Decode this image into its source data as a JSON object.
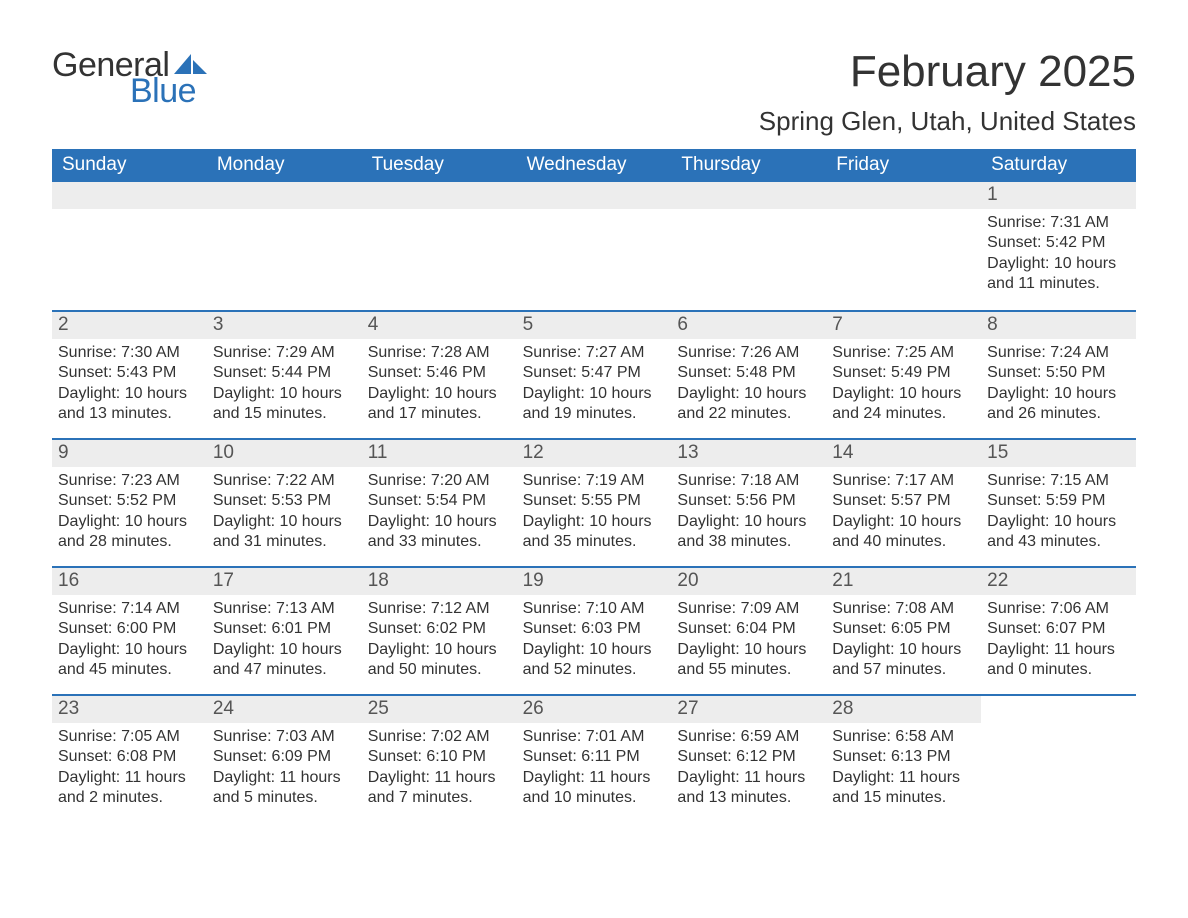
{
  "logo": {
    "text1": "General",
    "text2": "Blue",
    "sail_color": "#2b72b8"
  },
  "title": "February 2025",
  "location": "Spring Glen, Utah, United States",
  "header_bg": "#2b72b8",
  "header_fg": "#ffffff",
  "daynum_bg": "#ededed",
  "rule_color": "#2b72b8",
  "weekdays": [
    "Sunday",
    "Monday",
    "Tuesday",
    "Wednesday",
    "Thursday",
    "Friday",
    "Saturday"
  ],
  "first_weekday_index": 6,
  "days": [
    {
      "n": 1,
      "sunrise": "7:31 AM",
      "sunset": "5:42 PM",
      "dl_h": 10,
      "dl_m": 11
    },
    {
      "n": 2,
      "sunrise": "7:30 AM",
      "sunset": "5:43 PM",
      "dl_h": 10,
      "dl_m": 13
    },
    {
      "n": 3,
      "sunrise": "7:29 AM",
      "sunset": "5:44 PM",
      "dl_h": 10,
      "dl_m": 15
    },
    {
      "n": 4,
      "sunrise": "7:28 AM",
      "sunset": "5:46 PM",
      "dl_h": 10,
      "dl_m": 17
    },
    {
      "n": 5,
      "sunrise": "7:27 AM",
      "sunset": "5:47 PM",
      "dl_h": 10,
      "dl_m": 19
    },
    {
      "n": 6,
      "sunrise": "7:26 AM",
      "sunset": "5:48 PM",
      "dl_h": 10,
      "dl_m": 22
    },
    {
      "n": 7,
      "sunrise": "7:25 AM",
      "sunset": "5:49 PM",
      "dl_h": 10,
      "dl_m": 24
    },
    {
      "n": 8,
      "sunrise": "7:24 AM",
      "sunset": "5:50 PM",
      "dl_h": 10,
      "dl_m": 26
    },
    {
      "n": 9,
      "sunrise": "7:23 AM",
      "sunset": "5:52 PM",
      "dl_h": 10,
      "dl_m": 28
    },
    {
      "n": 10,
      "sunrise": "7:22 AM",
      "sunset": "5:53 PM",
      "dl_h": 10,
      "dl_m": 31
    },
    {
      "n": 11,
      "sunrise": "7:20 AM",
      "sunset": "5:54 PM",
      "dl_h": 10,
      "dl_m": 33
    },
    {
      "n": 12,
      "sunrise": "7:19 AM",
      "sunset": "5:55 PM",
      "dl_h": 10,
      "dl_m": 35
    },
    {
      "n": 13,
      "sunrise": "7:18 AM",
      "sunset": "5:56 PM",
      "dl_h": 10,
      "dl_m": 38
    },
    {
      "n": 14,
      "sunrise": "7:17 AM",
      "sunset": "5:57 PM",
      "dl_h": 10,
      "dl_m": 40
    },
    {
      "n": 15,
      "sunrise": "7:15 AM",
      "sunset": "5:59 PM",
      "dl_h": 10,
      "dl_m": 43
    },
    {
      "n": 16,
      "sunrise": "7:14 AM",
      "sunset": "6:00 PM",
      "dl_h": 10,
      "dl_m": 45
    },
    {
      "n": 17,
      "sunrise": "7:13 AM",
      "sunset": "6:01 PM",
      "dl_h": 10,
      "dl_m": 47
    },
    {
      "n": 18,
      "sunrise": "7:12 AM",
      "sunset": "6:02 PM",
      "dl_h": 10,
      "dl_m": 50
    },
    {
      "n": 19,
      "sunrise": "7:10 AM",
      "sunset": "6:03 PM",
      "dl_h": 10,
      "dl_m": 52
    },
    {
      "n": 20,
      "sunrise": "7:09 AM",
      "sunset": "6:04 PM",
      "dl_h": 10,
      "dl_m": 55
    },
    {
      "n": 21,
      "sunrise": "7:08 AM",
      "sunset": "6:05 PM",
      "dl_h": 10,
      "dl_m": 57
    },
    {
      "n": 22,
      "sunrise": "7:06 AM",
      "sunset": "6:07 PM",
      "dl_h": 11,
      "dl_m": 0
    },
    {
      "n": 23,
      "sunrise": "7:05 AM",
      "sunset": "6:08 PM",
      "dl_h": 11,
      "dl_m": 2
    },
    {
      "n": 24,
      "sunrise": "7:03 AM",
      "sunset": "6:09 PM",
      "dl_h": 11,
      "dl_m": 5
    },
    {
      "n": 25,
      "sunrise": "7:02 AM",
      "sunset": "6:10 PM",
      "dl_h": 11,
      "dl_m": 7
    },
    {
      "n": 26,
      "sunrise": "7:01 AM",
      "sunset": "6:11 PM",
      "dl_h": 11,
      "dl_m": 10
    },
    {
      "n": 27,
      "sunrise": "6:59 AM",
      "sunset": "6:12 PM",
      "dl_h": 11,
      "dl_m": 13
    },
    {
      "n": 28,
      "sunrise": "6:58 AM",
      "sunset": "6:13 PM",
      "dl_h": 11,
      "dl_m": 15
    }
  ],
  "labels": {
    "sunrise": "Sunrise:",
    "sunset": "Sunset:",
    "daylight": "Daylight:",
    "hours": "hours",
    "and": "and",
    "minutes": "minutes."
  }
}
